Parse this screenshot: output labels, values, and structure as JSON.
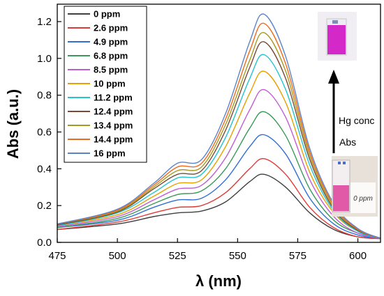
{
  "chart_data": {
    "type": "line",
    "xlabel": "λ (nm)",
    "ylabel": "Abs (a.u.)",
    "xlim": [
      475,
      610
    ],
    "ylim": [
      0.0,
      1.3
    ],
    "x_ticks": [
      "475",
      "500",
      "525",
      "550",
      "575",
      "600"
    ],
    "y_ticks": [
      "0.0",
      "0.2",
      "0.4",
      "0.6",
      "0.8",
      "1.0",
      "1.2"
    ],
    "legend_position": "top-left",
    "grid": false,
    "peak_nm": 561,
    "shoulder_nm": 526,
    "series": [
      {
        "name": "0 ppm",
        "color": "#3f3f3f",
        "values": {
          "475": 0.07,
          "500": 0.1,
          "515": 0.14,
          "525": 0.16,
          "535": 0.17,
          "545": 0.22,
          "555": 0.33,
          "561": 0.37,
          "570": 0.3,
          "580": 0.16,
          "590": 0.07,
          "600": 0.03,
          "610": 0.02
        }
      },
      {
        "name": "2.6 ppm",
        "color": "#e03a36",
        "values": {
          "475": 0.07,
          "500": 0.11,
          "515": 0.16,
          "525": 0.19,
          "535": 0.2,
          "545": 0.27,
          "555": 0.4,
          "561": 0.455,
          "570": 0.37,
          "580": 0.19,
          "590": 0.08,
          "600": 0.03,
          "610": 0.02
        }
      },
      {
        "name": "4.9 ppm",
        "color": "#2d6fd4",
        "values": {
          "475": 0.08,
          "500": 0.12,
          "515": 0.19,
          "525": 0.23,
          "535": 0.24,
          "545": 0.34,
          "555": 0.52,
          "561": 0.585,
          "570": 0.48,
          "580": 0.24,
          "590": 0.1,
          "600": 0.04,
          "610": 0.02
        }
      },
      {
        "name": "6.8 ppm",
        "color": "#3a9a57",
        "values": {
          "475": 0.08,
          "500": 0.13,
          "515": 0.21,
          "525": 0.26,
          "535": 0.28,
          "545": 0.4,
          "555": 0.62,
          "561": 0.71,
          "570": 0.58,
          "580": 0.29,
          "590": 0.12,
          "600": 0.05,
          "610": 0.02
        }
      },
      {
        "name": "8.5 ppm",
        "color": "#c25bd3",
        "values": {
          "475": 0.085,
          "500": 0.14,
          "515": 0.23,
          "525": 0.29,
          "535": 0.31,
          "545": 0.46,
          "555": 0.72,
          "561": 0.83,
          "570": 0.68,
          "580": 0.34,
          "590": 0.14,
          "600": 0.05,
          "610": 0.02
        }
      },
      {
        "name": "10 ppm",
        "color": "#e8a000",
        "values": {
          "475": 0.09,
          "500": 0.15,
          "515": 0.25,
          "525": 0.32,
          "535": 0.34,
          "545": 0.52,
          "555": 0.81,
          "561": 0.93,
          "570": 0.76,
          "580": 0.38,
          "590": 0.16,
          "600": 0.06,
          "610": 0.02
        }
      },
      {
        "name": "11.2 ppm",
        "color": "#1fc5cf",
        "values": {
          "475": 0.09,
          "500": 0.16,
          "515": 0.27,
          "525": 0.35,
          "535": 0.37,
          "545": 0.57,
          "555": 0.89,
          "561": 1.02,
          "570": 0.83,
          "580": 0.42,
          "590": 0.17,
          "600": 0.06,
          "610": 0.02
        }
      },
      {
        "name": "12.4 ppm",
        "color": "#7a4a36",
        "values": {
          "475": 0.095,
          "500": 0.165,
          "515": 0.29,
          "525": 0.37,
          "535": 0.39,
          "545": 0.61,
          "555": 0.95,
          "561": 1.09,
          "570": 0.89,
          "580": 0.45,
          "590": 0.18,
          "600": 0.065,
          "610": 0.02
        }
      },
      {
        "name": "13.4 ppm",
        "color": "#a59a1e",
        "values": {
          "475": 0.1,
          "500": 0.17,
          "515": 0.3,
          "525": 0.39,
          "535": 0.41,
          "545": 0.64,
          "555": 0.99,
          "561": 1.14,
          "570": 0.93,
          "580": 0.47,
          "590": 0.19,
          "600": 0.07,
          "610": 0.02
        }
      },
      {
        "name": "14.4 ppm",
        "color": "#ef6a1a",
        "values": {
          "475": 0.1,
          "500": 0.175,
          "515": 0.31,
          "525": 0.41,
          "535": 0.43,
          "545": 0.67,
          "555": 1.04,
          "561": 1.19,
          "570": 0.97,
          "580": 0.49,
          "590": 0.2,
          "600": 0.07,
          "610": 0.02
        }
      },
      {
        "name": "16 ppm",
        "color": "#5b84c8",
        "values": {
          "475": 0.1,
          "500": 0.18,
          "515": 0.32,
          "525": 0.43,
          "535": 0.45,
          "545": 0.7,
          "555": 1.09,
          "561": 1.24,
          "570": 1.01,
          "580": 0.51,
          "590": 0.21,
          "600": 0.075,
          "610": 0.02
        }
      }
    ],
    "annotations": {
      "arrow_label_top": "Hg conc",
      "arrow_label_bottom": "Abs",
      "photo_label": "0 ppm",
      "vial_top_color": "#d428c8",
      "vial_bottom_color": "#e05aa8"
    }
  }
}
